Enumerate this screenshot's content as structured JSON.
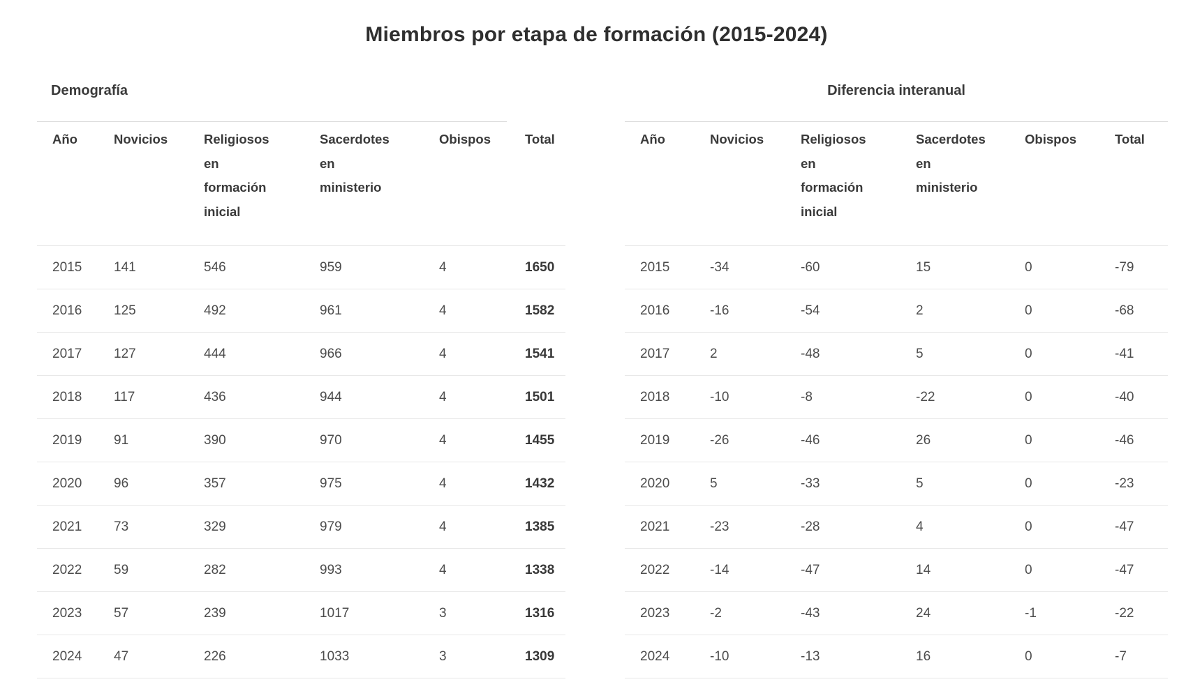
{
  "title": "Miembros por etapa de formación (2015-2024)",
  "colors": {
    "background": "#ffffff",
    "title_text": "#2f2f2f",
    "header_text": "#3a3a3a",
    "body_text": "#4c4c4c",
    "caption_rule": "#d9d9d9",
    "row_border": "#e8e8e8"
  },
  "tables": [
    {
      "caption": "Demografía",
      "columns": [
        "Año",
        "Novicios",
        "Religiosos en formación inicial",
        "Sacerdotes en ministerio",
        "Obispos",
        "Total"
      ],
      "header_display": [
        "Año",
        "Novicios",
        "Religiosos\nen\nformación\ninicial",
        "Sacerdotes\nen\nministerio",
        "Obispos",
        "Total"
      ],
      "total_column_bold": true,
      "rows": [
        [
          2015,
          141,
          546,
          959,
          4,
          1650
        ],
        [
          2016,
          125,
          492,
          961,
          4,
          1582
        ],
        [
          2017,
          127,
          444,
          966,
          4,
          1541
        ],
        [
          2018,
          117,
          436,
          944,
          4,
          1501
        ],
        [
          2019,
          91,
          390,
          970,
          4,
          1455
        ],
        [
          2020,
          96,
          357,
          975,
          4,
          1432
        ],
        [
          2021,
          73,
          329,
          979,
          4,
          1385
        ],
        [
          2022,
          59,
          282,
          993,
          4,
          1338
        ],
        [
          2023,
          57,
          239,
          1017,
          3,
          1316
        ],
        [
          2024,
          47,
          226,
          1033,
          3,
          1309
        ]
      ]
    },
    {
      "caption": "Diferencia interanual",
      "columns": [
        "Año",
        "Novicios",
        "Religiosos en formación inicial",
        "Sacerdotes en ministerio",
        "Obispos",
        "Total"
      ],
      "header_display": [
        "Año",
        "Novicios",
        "Religiosos\nen\nformación\ninicial",
        "Sacerdotes\nen\nministerio",
        "Obispos",
        "Total"
      ],
      "total_column_bold": false,
      "rows": [
        [
          2015,
          -34,
          -60,
          15,
          0,
          -79
        ],
        [
          2016,
          -16,
          -54,
          2,
          0,
          -68
        ],
        [
          2017,
          2,
          -48,
          5,
          0,
          -41
        ],
        [
          2018,
          -10,
          -8,
          -22,
          0,
          -40
        ],
        [
          2019,
          -26,
          -46,
          26,
          0,
          -46
        ],
        [
          2020,
          5,
          -33,
          5,
          0,
          -23
        ],
        [
          2021,
          -23,
          -28,
          4,
          0,
          -47
        ],
        [
          2022,
          -14,
          -47,
          14,
          0,
          -47
        ],
        [
          2023,
          -2,
          -43,
          24,
          -1,
          -22
        ],
        [
          2024,
          -10,
          -13,
          16,
          0,
          -7
        ]
      ]
    }
  ]
}
